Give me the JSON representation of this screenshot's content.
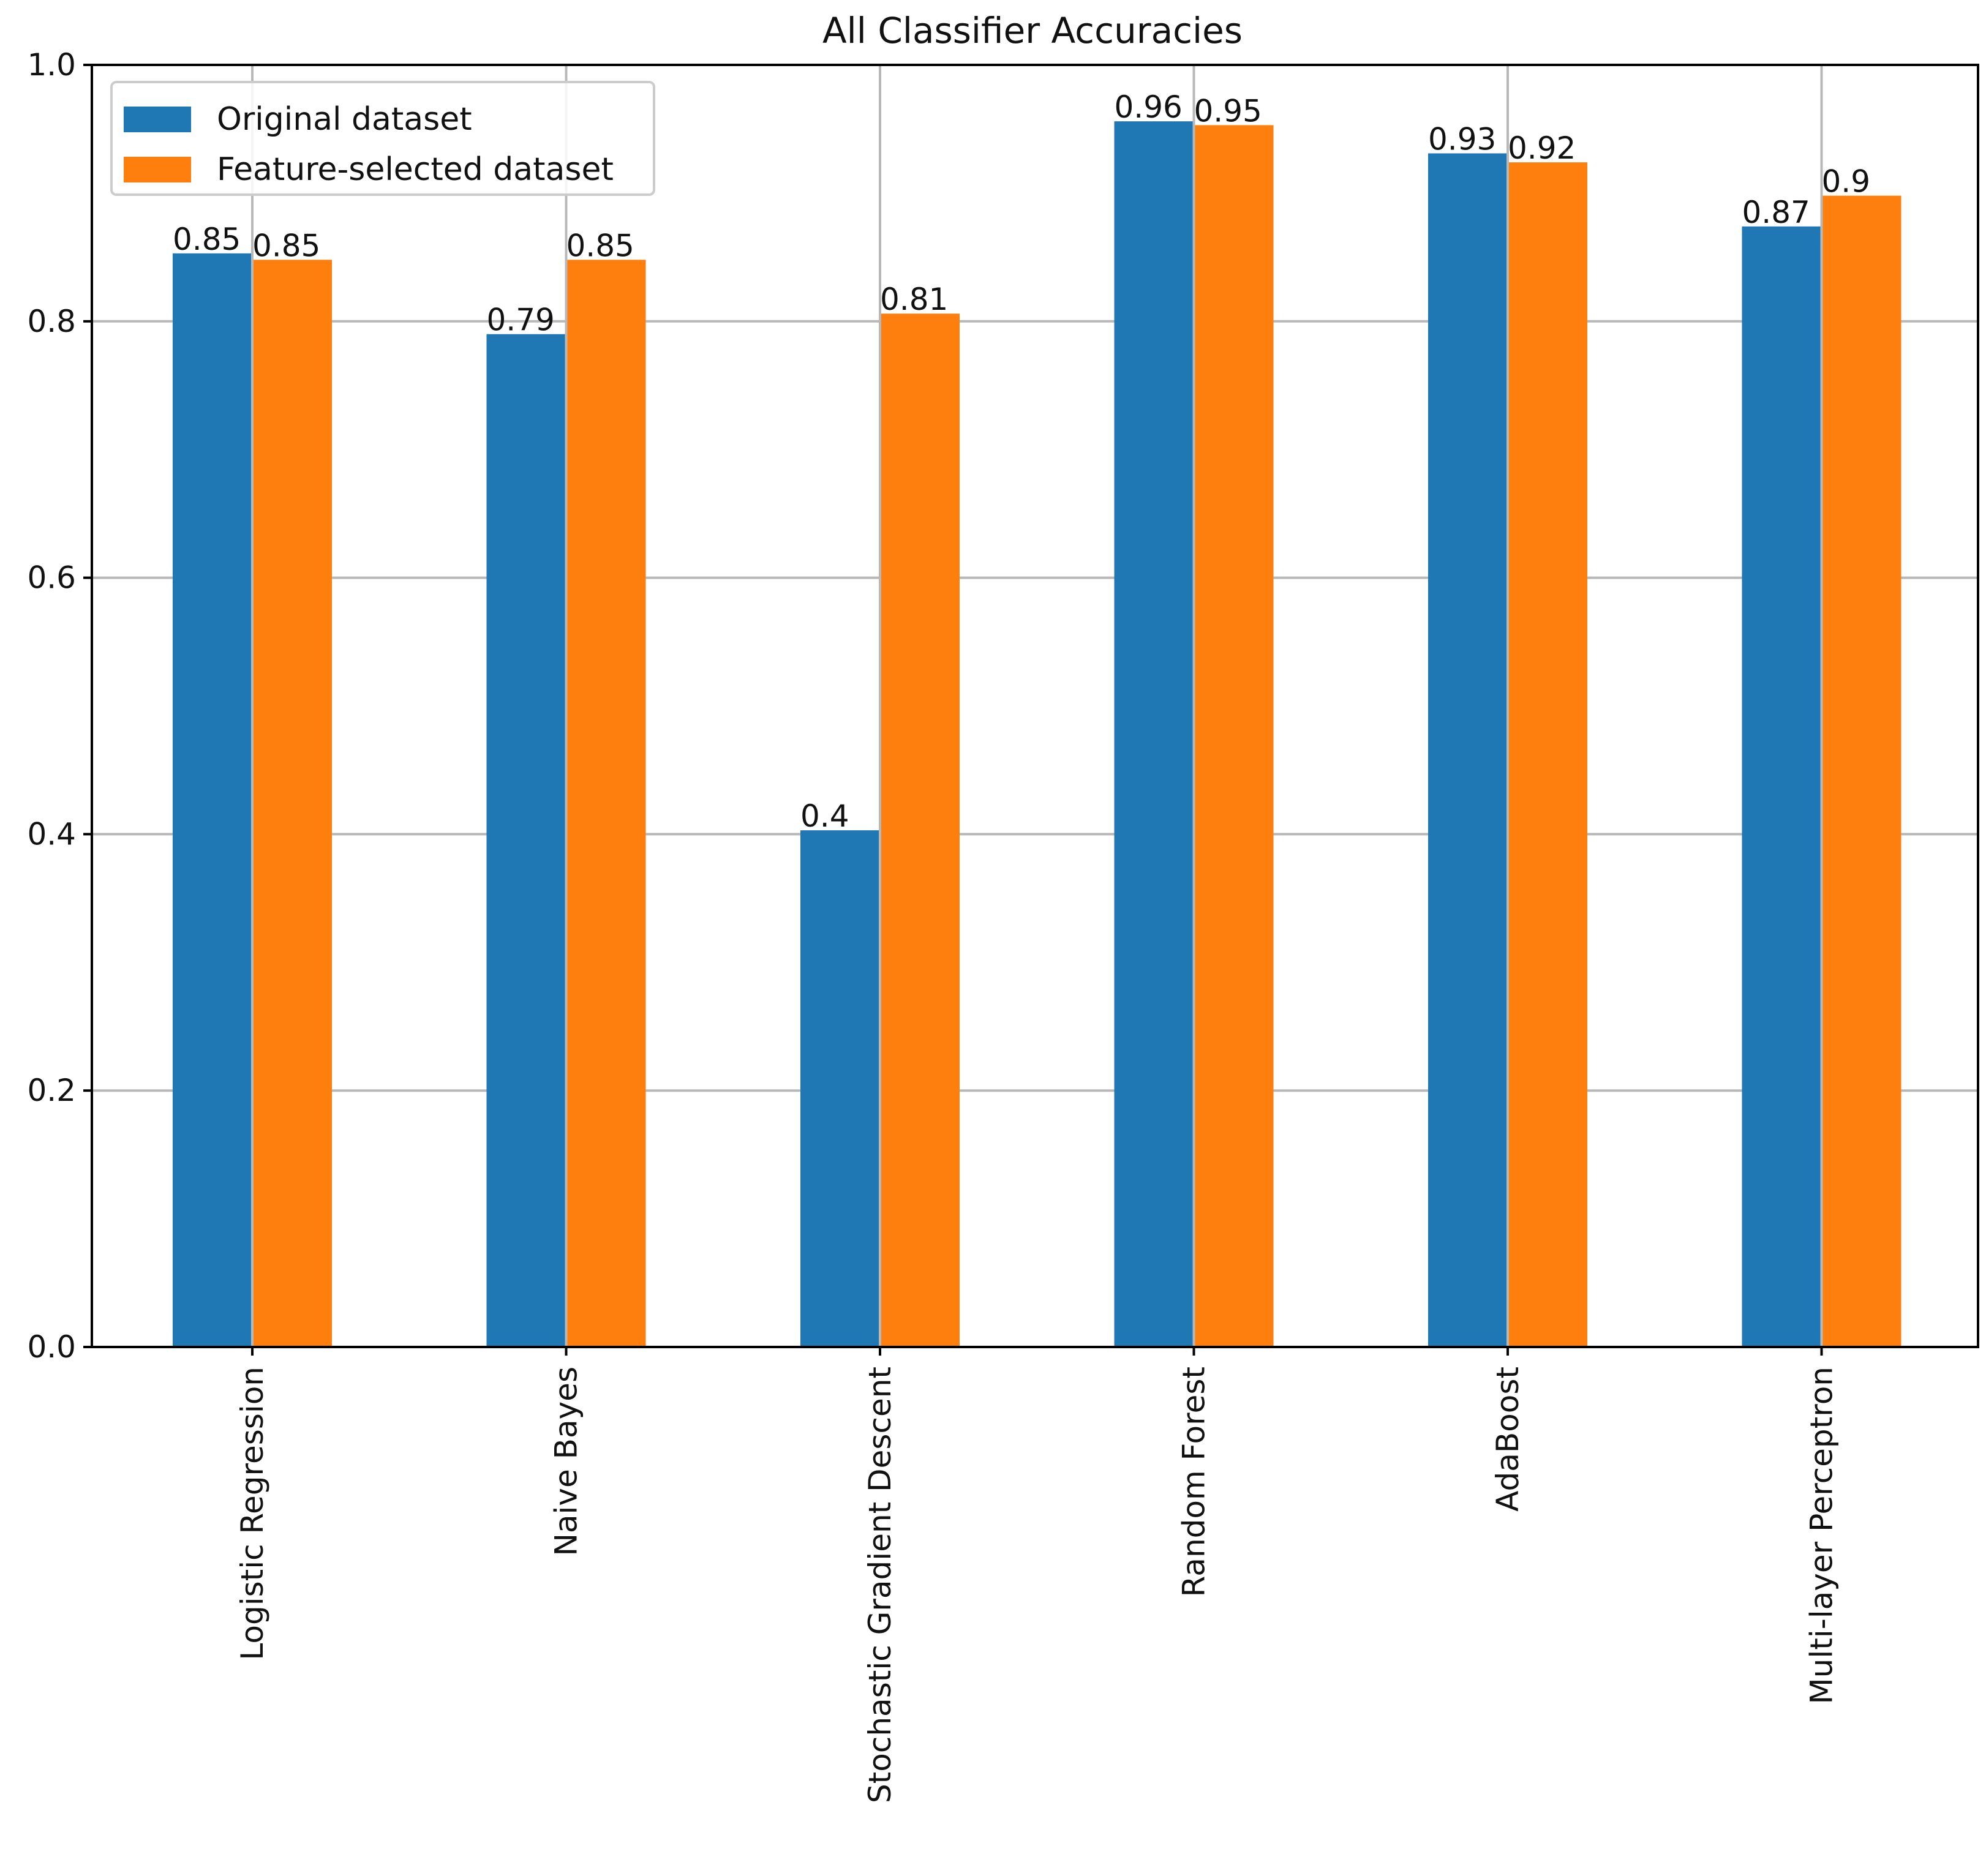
{
  "chart_data": {
    "type": "bar",
    "title": "All Classifier Accuracies",
    "xlabel": "",
    "ylabel": "",
    "ylim": [
      0,
      1.0
    ],
    "yticks": [
      {
        "value": 0.0,
        "label": "0.0"
      },
      {
        "value": 0.2,
        "label": "0.2"
      },
      {
        "value": 0.4,
        "label": "0.4"
      },
      {
        "value": 0.6,
        "label": "0.6"
      },
      {
        "value": 0.8,
        "label": "0.8"
      },
      {
        "value": 1.0,
        "label": "1.0"
      }
    ],
    "grid": true,
    "legend_position": "top-left",
    "categories": [
      "Logistic Regression",
      "Naive Bayes",
      "Stochastic Gradient Descent",
      "Random Forest",
      "AdaBoost",
      "Multi-layer Perceptron"
    ],
    "series": [
      {
        "name": "Original dataset",
        "color": "#1f77b4",
        "values": [
          0.853,
          0.79,
          0.403,
          0.956,
          0.931,
          0.874
        ],
        "labels": [
          "0.85",
          "0.79",
          "0.4",
          "0.96",
          "0.93",
          "0.87"
        ]
      },
      {
        "name": "Feature-selected dataset",
        "color": "#ff7f0e",
        "values": [
          0.848,
          0.848,
          0.806,
          0.953,
          0.924,
          0.898
        ],
        "labels": [
          "0.85",
          "0.85",
          "0.81",
          "0.95",
          "0.92",
          "0.9"
        ]
      }
    ]
  }
}
